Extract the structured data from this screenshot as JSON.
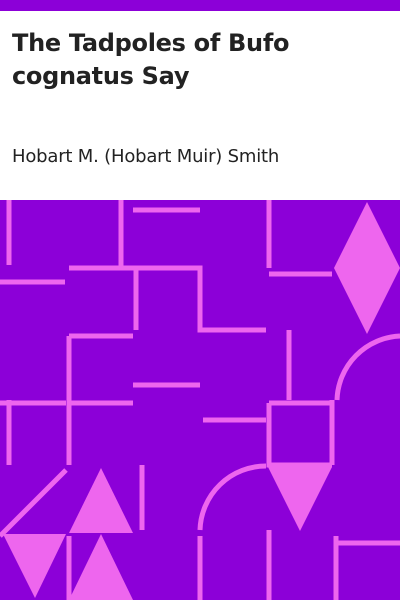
{
  "book": {
    "title": "The Tadpoles of Bufo cognatus Say",
    "author": "Hobart M. (Hobart Muir) Smith"
  },
  "colors": {
    "background": "#8c00d8",
    "pattern": "#ee66ee",
    "text": "#222222"
  }
}
